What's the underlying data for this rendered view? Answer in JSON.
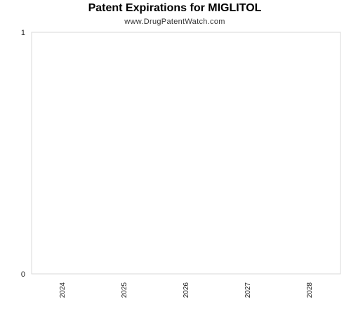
{
  "chart_data": {
    "type": "bar",
    "title": "Patent Expirations for MIGLITOL",
    "subtitle": "www.DrugPatentWatch.com",
    "categories": [
      "2024",
      "2025",
      "2026",
      "2027",
      "2028"
    ],
    "values": [
      0,
      0,
      0,
      0,
      0
    ],
    "xlabel": "",
    "ylabel": "",
    "ylim": [
      0,
      1
    ],
    "yticks": [
      "0",
      "1"
    ],
    "grid": false,
    "legend": "none",
    "colors": {
      "axis": "#d9d9d9",
      "text": "#222222"
    }
  }
}
